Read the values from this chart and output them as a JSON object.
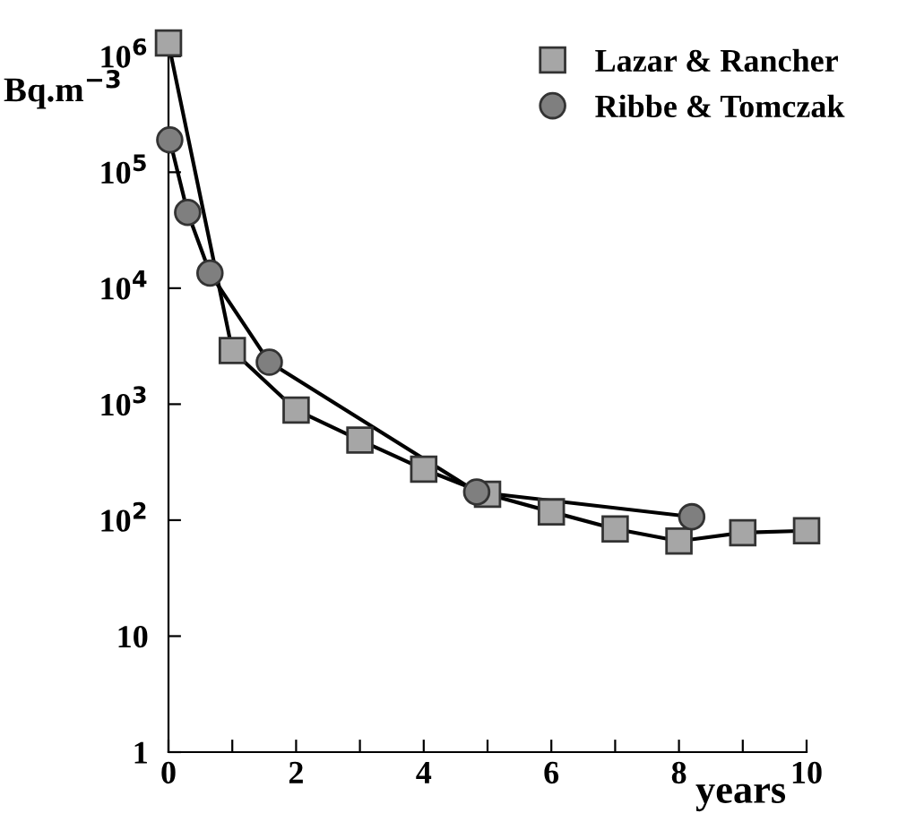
{
  "chart_data": {
    "type": "line",
    "xlabel": "years",
    "ylabel": "Bq.m$^{−3}$",
    "log": "y",
    "xlim": [
      0,
      10
    ],
    "ylim": [
      1,
      1500000
    ],
    "xticks": [
      0,
      {
        "value": 1,
        "label": null
      },
      2,
      {
        "value": 3,
        "label": null
      },
      4,
      {
        "value": 5,
        "label": null
      },
      6,
      {
        "value": 7,
        "label": null
      },
      8,
      {
        "value": 9,
        "label": null
      },
      10
    ],
    "yticks": [
      1,
      10,
      {
        "value": 100,
        "label": "10$^{2}$"
      },
      {
        "value": 1000,
        "label": "10$^{3}$"
      },
      {
        "value": 10000,
        "label": "10$^{4}$"
      },
      {
        "value": 100000,
        "label": "10$^{5}$"
      },
      {
        "value": 1000000,
        "label": "10$^{6}$"
      }
    ],
    "grid": false,
    "legend": "top right",
    "series": [
      {
        "name": "Lazar & Rancher",
        "color": "#a6a6a6",
        "marker": "square",
        "x": [
          0,
          1,
          2,
          3,
          4,
          5,
          6,
          7,
          8,
          9,
          10
        ],
        "values": [
          1300000,
          2900,
          890,
          490,
          275,
          167,
          118,
          84,
          66,
          78,
          81
        ]
      },
      {
        "name": "Ribbe & Tomczak",
        "color": "#7f7f7f",
        "marker": "circle",
        "x": [
          0.02,
          0.3,
          0.65,
          1.58,
          4.83,
          8.2
        ],
        "values": [
          190000,
          45000,
          13500,
          2300,
          175,
          107
        ]
      }
    ]
  }
}
